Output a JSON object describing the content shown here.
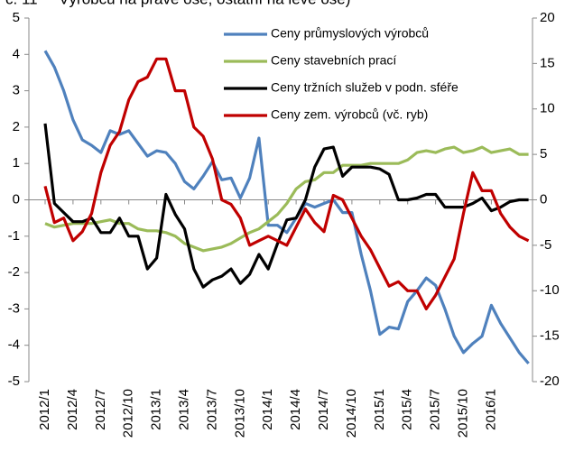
{
  "chart_data": {
    "type": "line",
    "title": "č. 11     Výrobců na pravé ose, ostatní na levé ose)",
    "categories": [
      "2012/1",
      null,
      null,
      "2012/4",
      null,
      null,
      "2012/7",
      null,
      null,
      "2012/10",
      null,
      null,
      "2013/1",
      null,
      null,
      "2013/4",
      null,
      null,
      "2013/7",
      null,
      null,
      "2013/10",
      null,
      null,
      "2014/1",
      null,
      null,
      "2014/4",
      null,
      null,
      "2014/7",
      null,
      null,
      "2014/10",
      null,
      null,
      "2015/1",
      null,
      null,
      "2015/4",
      null,
      null,
      "2015/7",
      null,
      null,
      "2015/10",
      null,
      null,
      "2016/1",
      null,
      null,
      null,
      null
    ],
    "ylim": [
      -5,
      5
    ],
    "yticks": [
      5,
      4,
      3,
      2,
      1,
      0,
      -1,
      -2,
      -3,
      -4,
      -5
    ],
    "y2lim": [
      -20,
      20
    ],
    "y2ticks": [
      20,
      15,
      10,
      5,
      0,
      -5,
      -10,
      -15,
      -20
    ],
    "legend": "top-right",
    "series": [
      {
        "name": "Ceny průmyslových výrobců",
        "color": "#4f81bd",
        "values": [
          4.1,
          3.65,
          3.0,
          2.2,
          1.65,
          1.5,
          1.3,
          1.9,
          1.8,
          1.9,
          1.55,
          1.2,
          1.35,
          1.3,
          1.0,
          0.5,
          0.3,
          0.65,
          1.05,
          0.55,
          0.6,
          0.05,
          0.6,
          1.7,
          -0.7,
          -0.7,
          -0.9,
          -0.5,
          -0.1,
          -0.2,
          -0.1,
          0.0,
          -0.35,
          -0.35,
          -1.5,
          -2.5,
          -3.7,
          -3.5,
          -3.55,
          -2.8,
          -2.5,
          -2.15,
          -2.35,
          -3.0,
          -3.75,
          -4.2,
          -3.95,
          -3.75,
          -2.9,
          -3.4,
          -3.8,
          -4.2,
          -4.5
        ]
      },
      {
        "name": "Ceny stavebních prací",
        "color": "#9bbb59",
        "values": [
          -0.65,
          -0.75,
          -0.7,
          -0.65,
          -0.65,
          -0.65,
          -0.6,
          -0.55,
          -0.65,
          -0.65,
          -0.8,
          -0.85,
          -0.85,
          -0.9,
          -1.0,
          -1.2,
          -1.3,
          -1.4,
          -1.35,
          -1.3,
          -1.2,
          -1.05,
          -0.9,
          -0.8,
          -0.6,
          -0.4,
          -0.1,
          0.3,
          0.5,
          0.55,
          0.75,
          0.75,
          0.95,
          0.95,
          0.95,
          1.0,
          1.0,
          1.0,
          1.0,
          1.1,
          1.3,
          1.35,
          1.3,
          1.4,
          1.45,
          1.3,
          1.35,
          1.45,
          1.3,
          1.35,
          1.4,
          1.25,
          1.25
        ]
      },
      {
        "name": "Ceny tržních služeb v podn. sféře",
        "color": "#000000",
        "values": [
          2.1,
          -0.1,
          -0.35,
          -0.6,
          -0.6,
          -0.5,
          -0.9,
          -0.9,
          -0.5,
          -1.0,
          -1.0,
          -1.9,
          -1.6,
          0.15,
          -0.4,
          -0.8,
          -1.9,
          -2.4,
          -2.2,
          -2.1,
          -1.9,
          -2.3,
          -2.05,
          -1.5,
          -1.9,
          -1.2,
          -0.55,
          -0.5,
          0.0,
          0.9,
          1.4,
          1.45,
          0.65,
          0.9,
          0.9,
          0.9,
          0.85,
          0.7,
          0.0,
          0.0,
          0.05,
          0.15,
          0.15,
          -0.2,
          -0.2,
          -0.2,
          -0.1,
          0.05,
          -0.3,
          -0.2,
          -0.05,
          0.0,
          0.0
        ]
      },
      {
        "name": "Ceny zem. výrobců (vč. ryb)",
        "color": "#c00000",
        "axis": "y2",
        "values": [
          1.5,
          -2.5,
          -2.0,
          -4.5,
          -3.5,
          -1.5,
          3.0,
          6.0,
          7.5,
          11.0,
          13.0,
          13.5,
          15.5,
          15.5,
          12.0,
          12.0,
          8.0,
          7.0,
          4.5,
          0.0,
          -0.5,
          -2.0,
          -5.0,
          -4.5,
          -4.0,
          -4.5,
          -5.0,
          -3.0,
          -1.0,
          -2.5,
          -3.5,
          0.5,
          0.0,
          -2.0,
          -4.0,
          -5.5,
          -7.5,
          -9.5,
          -9.0,
          -10.0,
          -10.0,
          -12.0,
          -10.5,
          -8.5,
          -6.5,
          -1.5,
          3.0,
          1.0,
          1.0,
          -1.5,
          -3.0,
          -4.0,
          -4.5
        ]
      }
    ]
  }
}
